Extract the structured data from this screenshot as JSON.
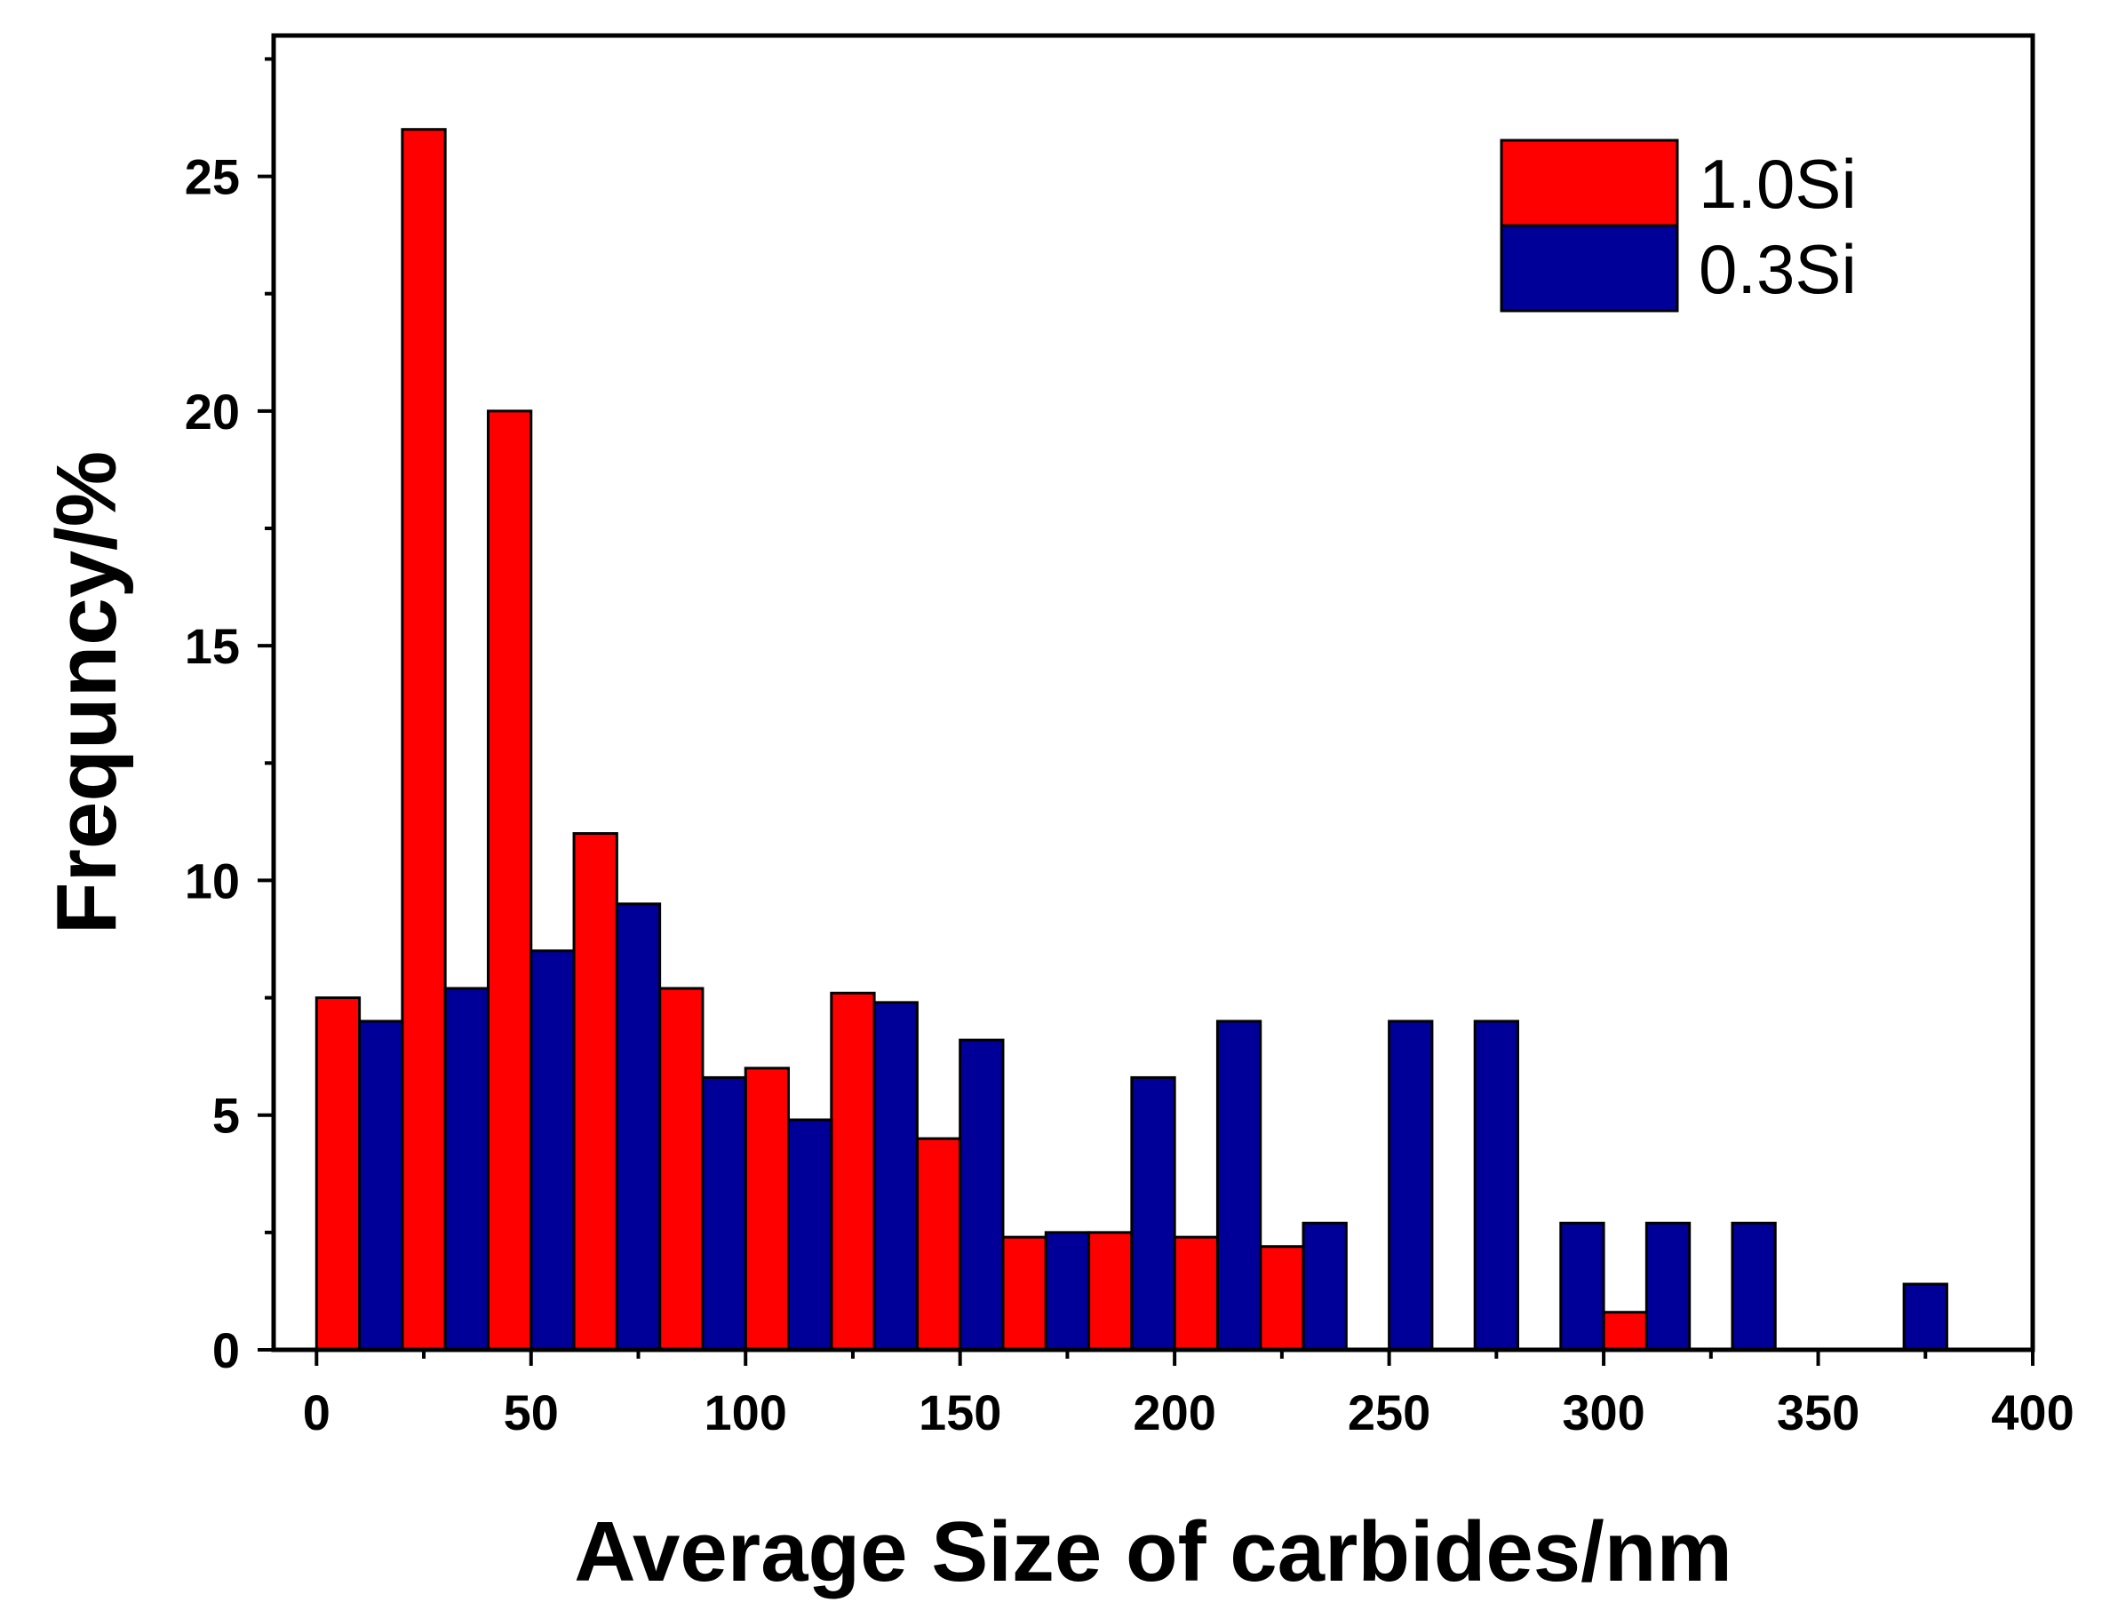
{
  "chart_data": {
    "type": "bar",
    "xlabel": "Average Size of carbides/nm",
    "ylabel": "Frequncy/%",
    "xlim": [
      -10,
      400
    ],
    "ylim": [
      0,
      28
    ],
    "xticks": [
      0,
      50,
      100,
      150,
      200,
      250,
      300,
      350,
      400
    ],
    "yticks": [
      0,
      5,
      10,
      15,
      20,
      25
    ],
    "bin_width": 20,
    "bin_starts": [
      0,
      20,
      40,
      60,
      80,
      100,
      120,
      140,
      160,
      180,
      200,
      220,
      240,
      260,
      280,
      300,
      320,
      340,
      360
    ],
    "legend_position": "top-right",
    "series": [
      {
        "name": "1.0Si",
        "color": "#ff0000",
        "values": [
          7.5,
          26,
          20,
          11,
          7.7,
          6,
          7.6,
          4.5,
          2.4,
          2.5,
          2.4,
          2.2,
          0,
          0,
          0,
          0.8,
          0,
          0,
          0
        ]
      },
      {
        "name": "0.3Si",
        "color": "#000099",
        "values": [
          7,
          7.7,
          8.5,
          9.5,
          5.8,
          4.9,
          7.4,
          6.6,
          2.5,
          5.8,
          7,
          2.7,
          7,
          7,
          2.7,
          2.7,
          2.7,
          0,
          1.4
        ]
      }
    ]
  }
}
